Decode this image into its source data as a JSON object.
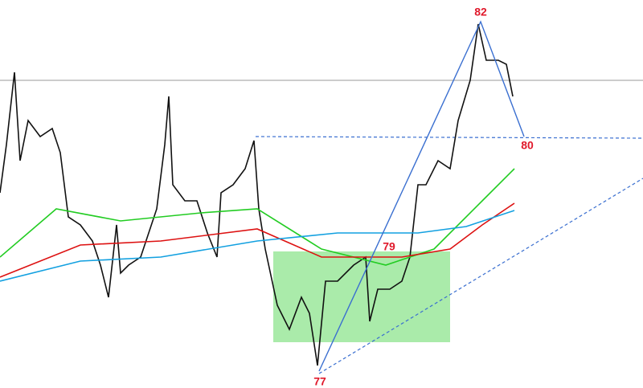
{
  "annotations": [
    {
      "label": "82"
    },
    {
      "label": "80"
    },
    {
      "label": "79"
    },
    {
      "label": "77"
    }
  ]
}
